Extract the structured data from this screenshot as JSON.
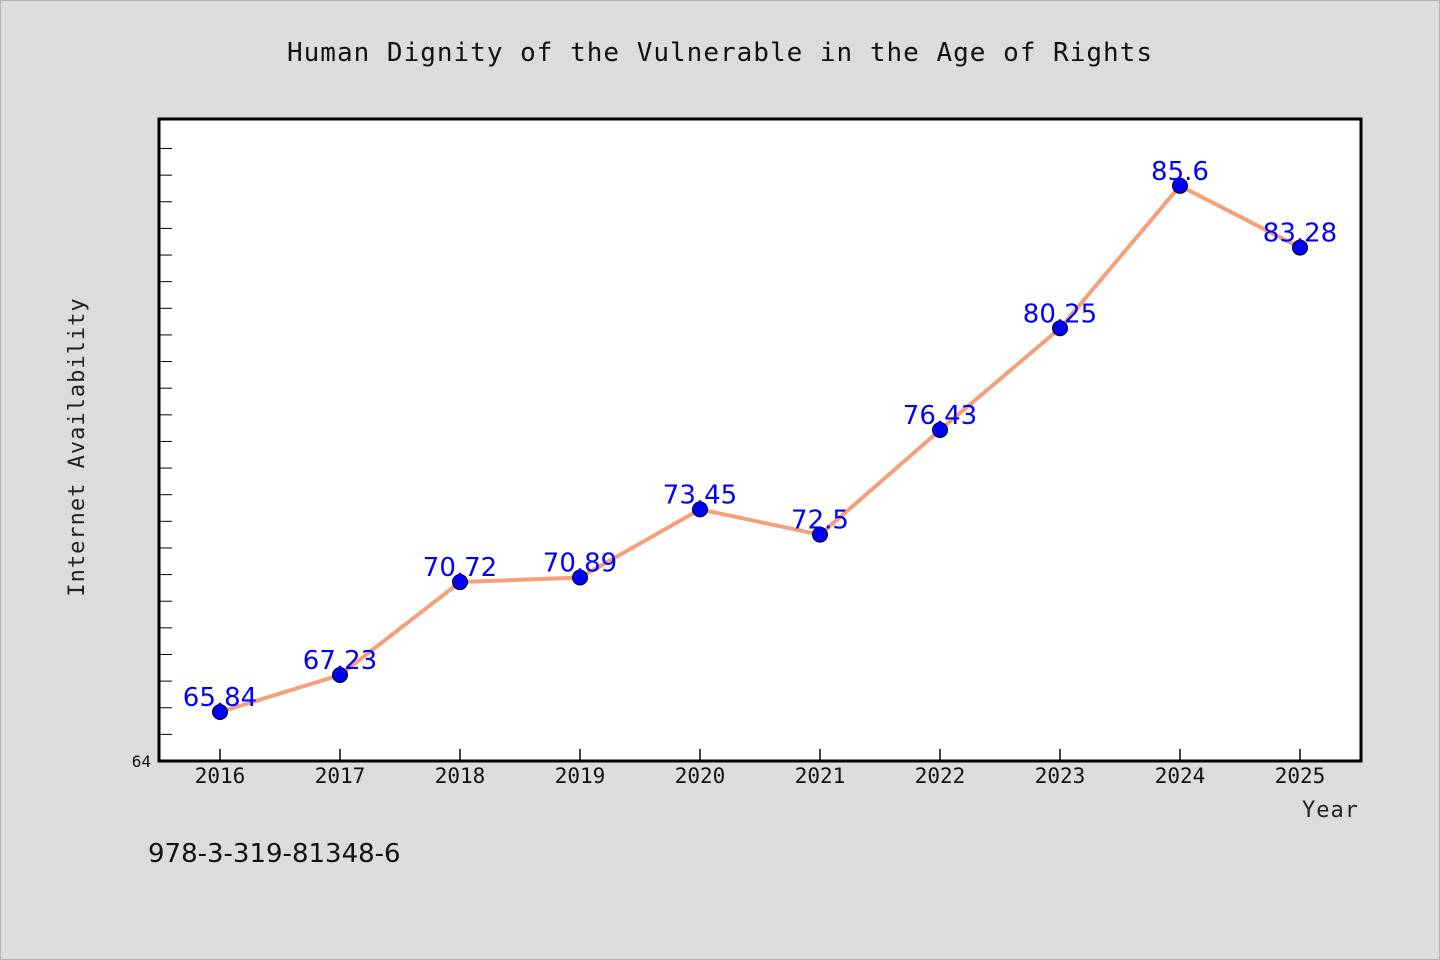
{
  "chart_data": {
    "type": "line",
    "title": "Human Dignity of the Vulnerable in the Age of Rights",
    "xlabel": "Year",
    "ylabel": "Internet Availability",
    "categories": [
      "2016",
      "2017",
      "2018",
      "2019",
      "2020",
      "2021",
      "2022",
      "2023",
      "2024",
      "2025"
    ],
    "series": [
      {
        "values": [
          65.84,
          67.23,
          70.72,
          70.89,
          73.45,
          72.5,
          76.43,
          80.25,
          85.6,
          83.28
        ],
        "value_labels": [
          "65.84",
          "67.23",
          "70.72",
          "70.89",
          "73.45",
          "72.5",
          "76.43",
          "80.25",
          "85.6",
          "83.28"
        ],
        "line_color": "#f5a07a",
        "marker_color": "#0000ff"
      }
    ],
    "ylim": [
      64,
      88
    ],
    "y_min_label": "64",
    "grid": false,
    "legend": "none"
  },
  "footer_text": "978-3-319-81348-6"
}
